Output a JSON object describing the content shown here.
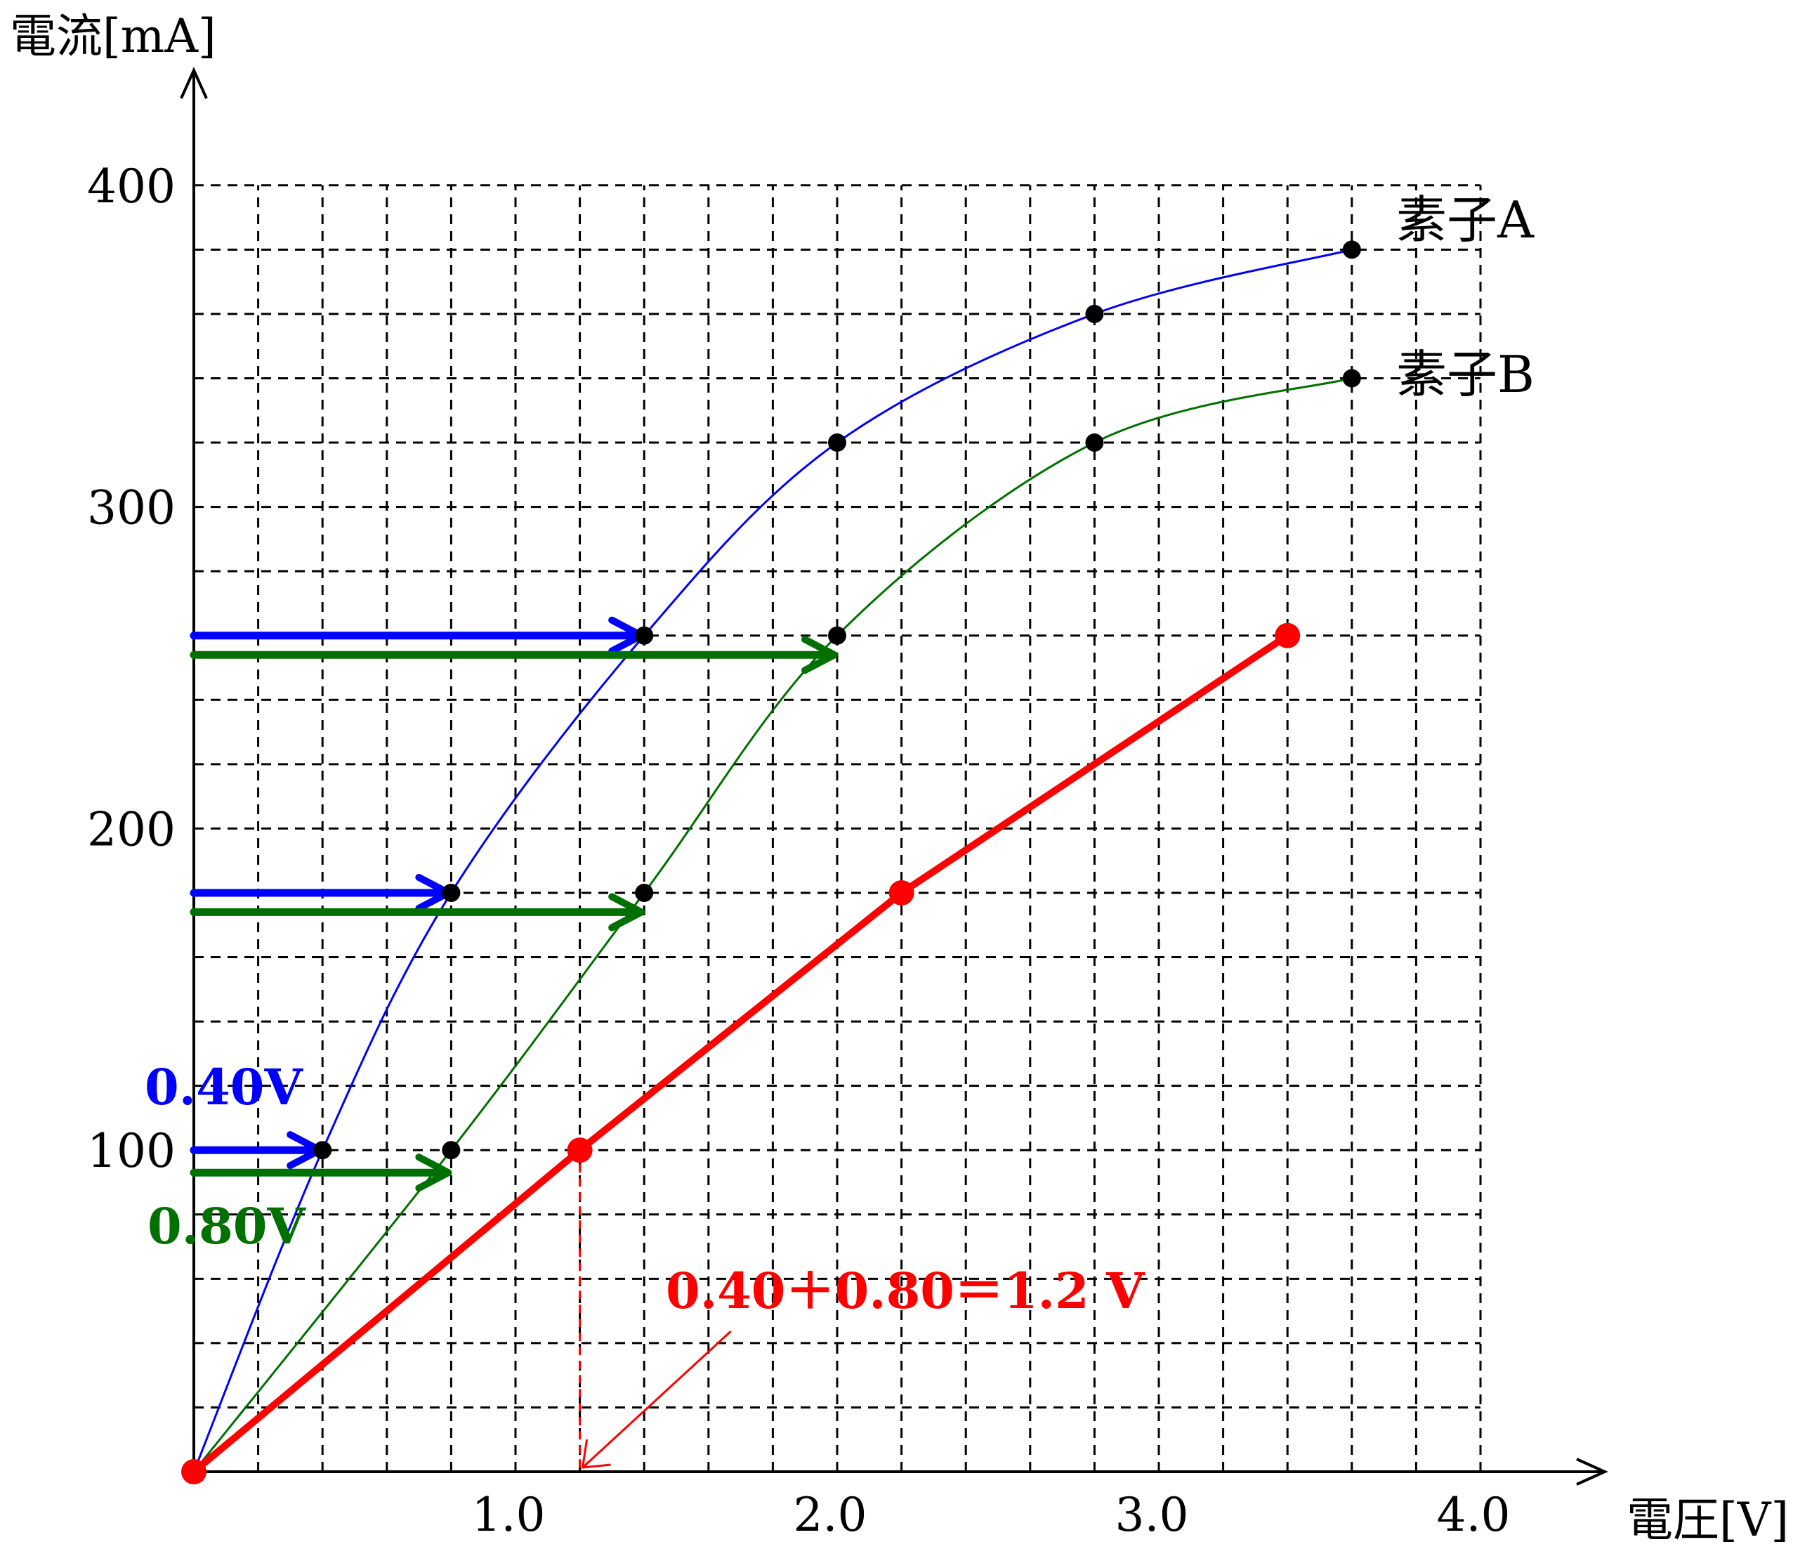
{
  "chart_data": {
    "type": "line",
    "xlabel": "電圧[V]",
    "ylabel": "電流[mA]",
    "xlim": [
      0,
      4.0
    ],
    "ylim": [
      0,
      400
    ],
    "x_ticks": [
      {
        "value": 1.0,
        "label": "1.0"
      },
      {
        "value": 2.0,
        "label": "2.0"
      },
      {
        "value": 3.0,
        "label": "3.0"
      },
      {
        "value": 4.0,
        "label": "4.0"
      }
    ],
    "y_ticks": [
      {
        "value": 100,
        "label": "100"
      },
      {
        "value": 200,
        "label": "200"
      },
      {
        "value": 300,
        "label": "300"
      },
      {
        "value": 400,
        "label": "400"
      }
    ],
    "grid": true,
    "grid_step_x": 0.2,
    "grid_step_y": 20,
    "series": [
      {
        "name": "素子A",
        "color": "#0000ff",
        "x": [
          0,
          0.4,
          0.8,
          1.4,
          2.0,
          2.8,
          3.6
        ],
        "y": [
          0,
          100,
          180,
          260,
          320,
          360,
          380
        ]
      },
      {
        "name": "素子B",
        "color": "#007000",
        "x": [
          0,
          0.8,
          1.4,
          2.0,
          2.8,
          3.6
        ],
        "y": [
          0,
          100,
          180,
          260,
          320,
          340
        ]
      },
      {
        "name": "",
        "color": "#ff0000",
        "x": [
          0,
          1.2,
          2.2,
          3.4
        ],
        "y": [
          0,
          100,
          180,
          260
        ]
      }
    ],
    "arrows": [
      {
        "color": "#0000ff",
        "x_from": 0,
        "x_to": 0.4,
        "y": 100
      },
      {
        "color": "#007000",
        "x_from": 0,
        "x_to": 0.8,
        "y": 93
      },
      {
        "color": "#0000ff",
        "x_from": 0,
        "x_to": 0.8,
        "y": 180
      },
      {
        "color": "#007000",
        "x_from": 0,
        "x_to": 1.4,
        "y": 174
      },
      {
        "color": "#0000ff",
        "x_from": 0,
        "x_to": 1.4,
        "y": 260
      },
      {
        "color": "#007000",
        "x_from": 0,
        "x_to": 2.0,
        "y": 254
      }
    ],
    "annotations": [
      {
        "text": "0.40V",
        "color": "#0000ff"
      },
      {
        "text": "0.80V",
        "color": "#007000"
      },
      {
        "text": "0.40＋0.80＝1.2 V",
        "color": "#ff0000"
      }
    ]
  }
}
